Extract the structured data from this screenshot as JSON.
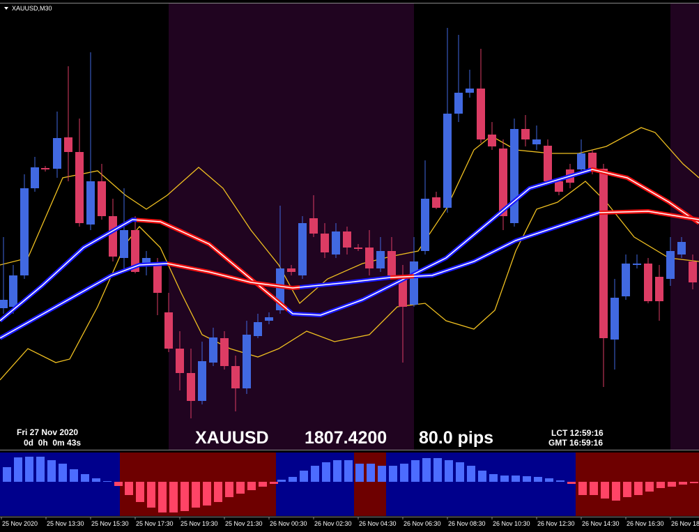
{
  "window": {
    "title": "XAUUSD,M30"
  },
  "info": {
    "date": "Fri 27 Nov 2020",
    "countdown": "0d  0h  0m 43s",
    "symbol": "XAUUSD",
    "price": "1807.4200",
    "spread": "80.0 pips",
    "lct": "LCT 12:59:16",
    "gmt": "GMT 16:59:16"
  },
  "time_axis": [
    "25 Nov 2020",
    "25 Nov 13:30",
    "25 Nov 15:30",
    "25 Nov 17:30",
    "25 Nov 19:30",
    "25 Nov 21:30",
    "26 Nov 00:30",
    "26 Nov 02:30",
    "26 Nov 04:30",
    "26 Nov 06:30",
    "26 Nov 08:30",
    "26 Nov 10:30",
    "26 Nov 12:30",
    "26 Nov 14:30",
    "26 Nov 16:30",
    "26 Nov 18"
  ]
}
